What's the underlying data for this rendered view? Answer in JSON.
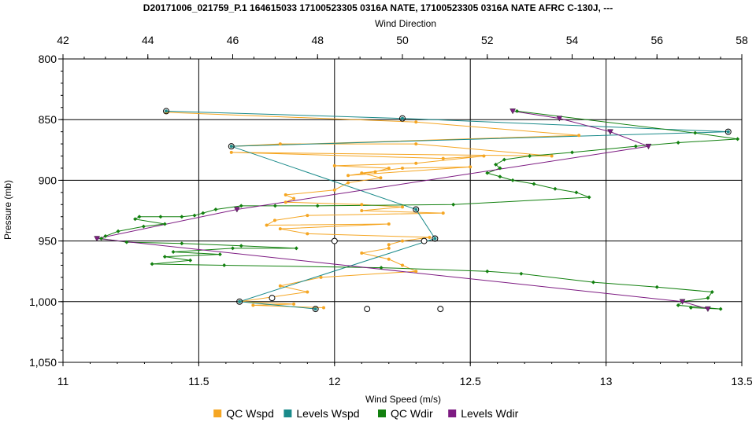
{
  "chart_data": {
    "type": "line",
    "title": "D20171006_021759_P.1 164615033 17100523305 0316A NATE, 17100523305 0316A  NATE AFRC C-130J, ---",
    "xlabel": "Wind Speed (m/s)",
    "x2label": "Wind Direction",
    "ylabel": "Pressure (mb)",
    "xlim": [
      11,
      13.5
    ],
    "x2lim": [
      42,
      58
    ],
    "ylim": [
      800,
      1050
    ],
    "y_inverted": true,
    "grid": true,
    "legend_position": "bottom",
    "x_ticks": [
      "11",
      "11.5",
      "12",
      "12.5",
      "13",
      "13.5"
    ],
    "x_tick_values": [
      11,
      11.5,
      12,
      12.5,
      13,
      13.5
    ],
    "x2_ticks": [
      "42",
      "44",
      "46",
      "48",
      "50",
      "52",
      "54",
      "56",
      "58"
    ],
    "x2_tick_values": [
      42,
      44,
      46,
      48,
      50,
      52,
      54,
      56,
      58
    ],
    "y_ticks": [
      "800",
      "850",
      "900",
      "950",
      "1,000",
      "1,050"
    ],
    "y_tick_values": [
      800,
      850,
      900,
      950,
      1000,
      1050
    ],
    "series": [
      {
        "name": "QC Wspd",
        "axis": "bottom",
        "color": "#f5a623",
        "marker": "dot",
        "points": [
          [
            11.38,
            844
          ],
          [
            12.3,
            852
          ],
          [
            12.9,
            863
          ],
          [
            11.62,
            872
          ],
          [
            11.8,
            870
          ],
          [
            12.3,
            870
          ],
          [
            12.8,
            880
          ],
          [
            11.62,
            877
          ],
          [
            12.4,
            882
          ],
          [
            12.55,
            880
          ],
          [
            12.3,
            886
          ],
          [
            12.0,
            888
          ],
          [
            12.2,
            890
          ],
          [
            12.15,
            893
          ],
          [
            12.05,
            896
          ],
          [
            12.5,
            889
          ],
          [
            12.25,
            890
          ],
          [
            12.1,
            894
          ],
          [
            12.17,
            898
          ],
          [
            12.05,
            902
          ],
          [
            12.0,
            908
          ],
          [
            11.82,
            912
          ],
          [
            11.85,
            915
          ],
          [
            11.82,
            918
          ],
          [
            12.1,
            920
          ],
          [
            12.25,
            922
          ],
          [
            12.1,
            925
          ],
          [
            12.4,
            927
          ],
          [
            11.9,
            929
          ],
          [
            11.78,
            933
          ],
          [
            11.75,
            937
          ],
          [
            12.2,
            936
          ],
          [
            11.8,
            940
          ],
          [
            11.9,
            944
          ],
          [
            12.35,
            947
          ],
          [
            12.25,
            950
          ],
          [
            12.2,
            953
          ],
          [
            12.2,
            956
          ],
          [
            12.1,
            960
          ],
          [
            12.2,
            965
          ],
          [
            12.25,
            970
          ],
          [
            12.3,
            975
          ],
          [
            11.95,
            980
          ],
          [
            11.8,
            987
          ],
          [
            11.9,
            992
          ],
          [
            11.65,
            1000
          ],
          [
            11.85,
            1002
          ],
          [
            11.7,
            1003
          ],
          [
            11.96,
            1005
          ]
        ]
      },
      {
        "name": "Levels Wspd",
        "axis": "bottom",
        "color": "#1a8a8a",
        "marker": "circle",
        "points": [
          [
            11.38,
            843
          ],
          [
            12.25,
            849
          ],
          [
            13.45,
            860
          ],
          [
            11.62,
            872
          ],
          [
            12.3,
            924
          ],
          [
            12.37,
            948
          ],
          [
            11.65,
            1000
          ],
          [
            11.93,
            1006
          ]
        ]
      },
      {
        "name": "QC Wdir",
        "axis": "top",
        "color": "#12800f",
        "marker": "diamond",
        "points": [
          [
            52.7,
            843
          ],
          [
            56.9,
            861
          ],
          [
            57.9,
            866
          ],
          [
            56.5,
            869
          ],
          [
            55.5,
            872
          ],
          [
            54.0,
            877
          ],
          [
            53.0,
            880
          ],
          [
            52.4,
            883
          ],
          [
            52.2,
            887
          ],
          [
            52.3,
            890
          ],
          [
            52.0,
            894
          ],
          [
            52.3,
            897
          ],
          [
            52.6,
            900
          ],
          [
            53.1,
            903
          ],
          [
            53.6,
            907
          ],
          [
            54.1,
            910
          ],
          [
            54.4,
            914
          ],
          [
            51.2,
            920
          ],
          [
            48.0,
            921
          ],
          [
            47.0,
            921
          ],
          [
            46.2,
            921
          ],
          [
            45.6,
            924
          ],
          [
            45.3,
            927
          ],
          [
            45.1,
            929
          ],
          [
            44.8,
            930
          ],
          [
            44.3,
            930
          ],
          [
            43.8,
            930
          ],
          [
            43.7,
            932
          ],
          [
            44.4,
            936
          ],
          [
            43.9,
            938
          ],
          [
            43.3,
            942
          ],
          [
            43.0,
            946
          ],
          [
            42.9,
            948
          ],
          [
            43.5,
            951
          ],
          [
            44.8,
            952
          ],
          [
            46.2,
            954
          ],
          [
            47.5,
            956
          ],
          [
            46.0,
            956
          ],
          [
            44.6,
            959
          ],
          [
            45.7,
            961
          ],
          [
            44.4,
            963
          ],
          [
            45.0,
            966
          ],
          [
            44.1,
            969
          ],
          [
            45.8,
            970
          ],
          [
            49.5,
            972
          ],
          [
            52.0,
            975
          ],
          [
            52.8,
            977
          ],
          [
            54.5,
            984
          ],
          [
            56.0,
            988
          ],
          [
            57.3,
            992
          ],
          [
            57.2,
            997
          ],
          [
            56.6,
            1000
          ],
          [
            56.5,
            1003
          ],
          [
            57.5,
            1006
          ],
          [
            56.8,
            1005
          ]
        ]
      },
      {
        "name": "Levels Wdir",
        "axis": "top",
        "color": "#7d1b82",
        "marker": "triangle",
        "points": [
          [
            52.6,
            843
          ],
          [
            53.7,
            849
          ],
          [
            54.9,
            860
          ],
          [
            55.8,
            872
          ],
          [
            46.1,
            924
          ],
          [
            42.8,
            948
          ],
          [
            56.6,
            1000
          ],
          [
            57.2,
            1006
          ]
        ]
      },
      {
        "name": "",
        "axis": "bottom",
        "color": "#000000",
        "marker": "open-circle",
        "points": [
          [
            12.0,
            950
          ],
          [
            12.33,
            950
          ],
          [
            11.77,
            997
          ],
          [
            12.12,
            1006
          ],
          [
            12.39,
            1006
          ]
        ]
      }
    ]
  }
}
